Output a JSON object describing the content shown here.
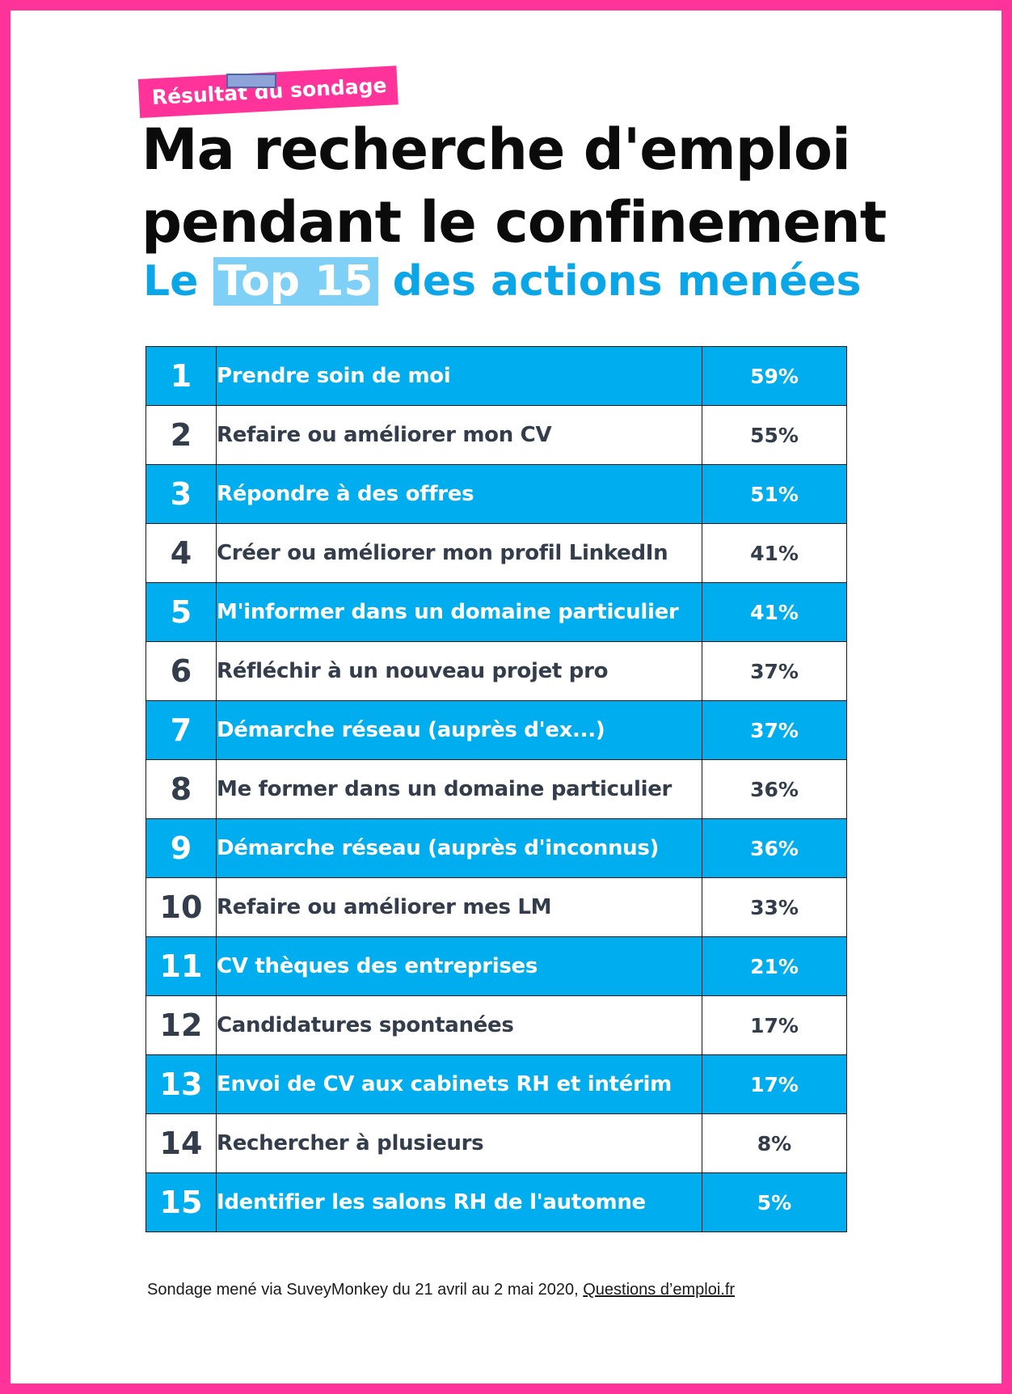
{
  "colors": {
    "border": "#ff3399",
    "accent": "#00aeef",
    "highlight": "#7fd0f6",
    "title": "#0b0b0b"
  },
  "header": {
    "tag": "Résultat du sondage",
    "title_line1": "Ma recherche d'emploi",
    "title_line2": "pendant le confinement",
    "subtitle_prefix": "Le",
    "subtitle_highlight": "Top 15",
    "subtitle_suffix": "des actions menées"
  },
  "rows": [
    {
      "rank": "1",
      "action": "Prendre soin de moi",
      "percent": "59%"
    },
    {
      "rank": "2",
      "action": "Refaire ou améliorer mon CV",
      "percent": "55%"
    },
    {
      "rank": "3",
      "action": "Répondre à des offres",
      "percent": "51%"
    },
    {
      "rank": "4",
      "action": "Créer ou améliorer mon profil LinkedIn",
      "percent": "41%"
    },
    {
      "rank": "5",
      "action": "M'informer dans un domaine particulier",
      "percent": "41%"
    },
    {
      "rank": "6",
      "action": "Réfléchir à un nouveau projet pro",
      "percent": "37%"
    },
    {
      "rank": "7",
      "action": "Démarche réseau (auprès d'ex...)",
      "percent": "37%"
    },
    {
      "rank": "8",
      "action": "Me former dans un domaine particulier",
      "percent": "36%"
    },
    {
      "rank": "9",
      "action": "Démarche réseau (auprès d'inconnus)",
      "percent": "36%"
    },
    {
      "rank": "10",
      "action": "Refaire ou améliorer mes LM",
      "percent": "33%"
    },
    {
      "rank": "11",
      "action": "CV thèques des entreprises",
      "percent": "21%"
    },
    {
      "rank": "12",
      "action": "Candidatures spontanées",
      "percent": "17%"
    },
    {
      "rank": "13",
      "action": "Envoi de CV aux cabinets RH et intérim",
      "percent": "17%"
    },
    {
      "rank": "14",
      "action": "Rechercher à plusieurs",
      "percent": "8%"
    },
    {
      "rank": "15",
      "action": "Identifier les salons RH de l'automne",
      "percent": "5%"
    }
  ],
  "footer": {
    "text": "Sondage mené via SuveyMonkey du 21 avril au 2 mai 2020, ",
    "link": "Questions d’emploi.fr"
  }
}
